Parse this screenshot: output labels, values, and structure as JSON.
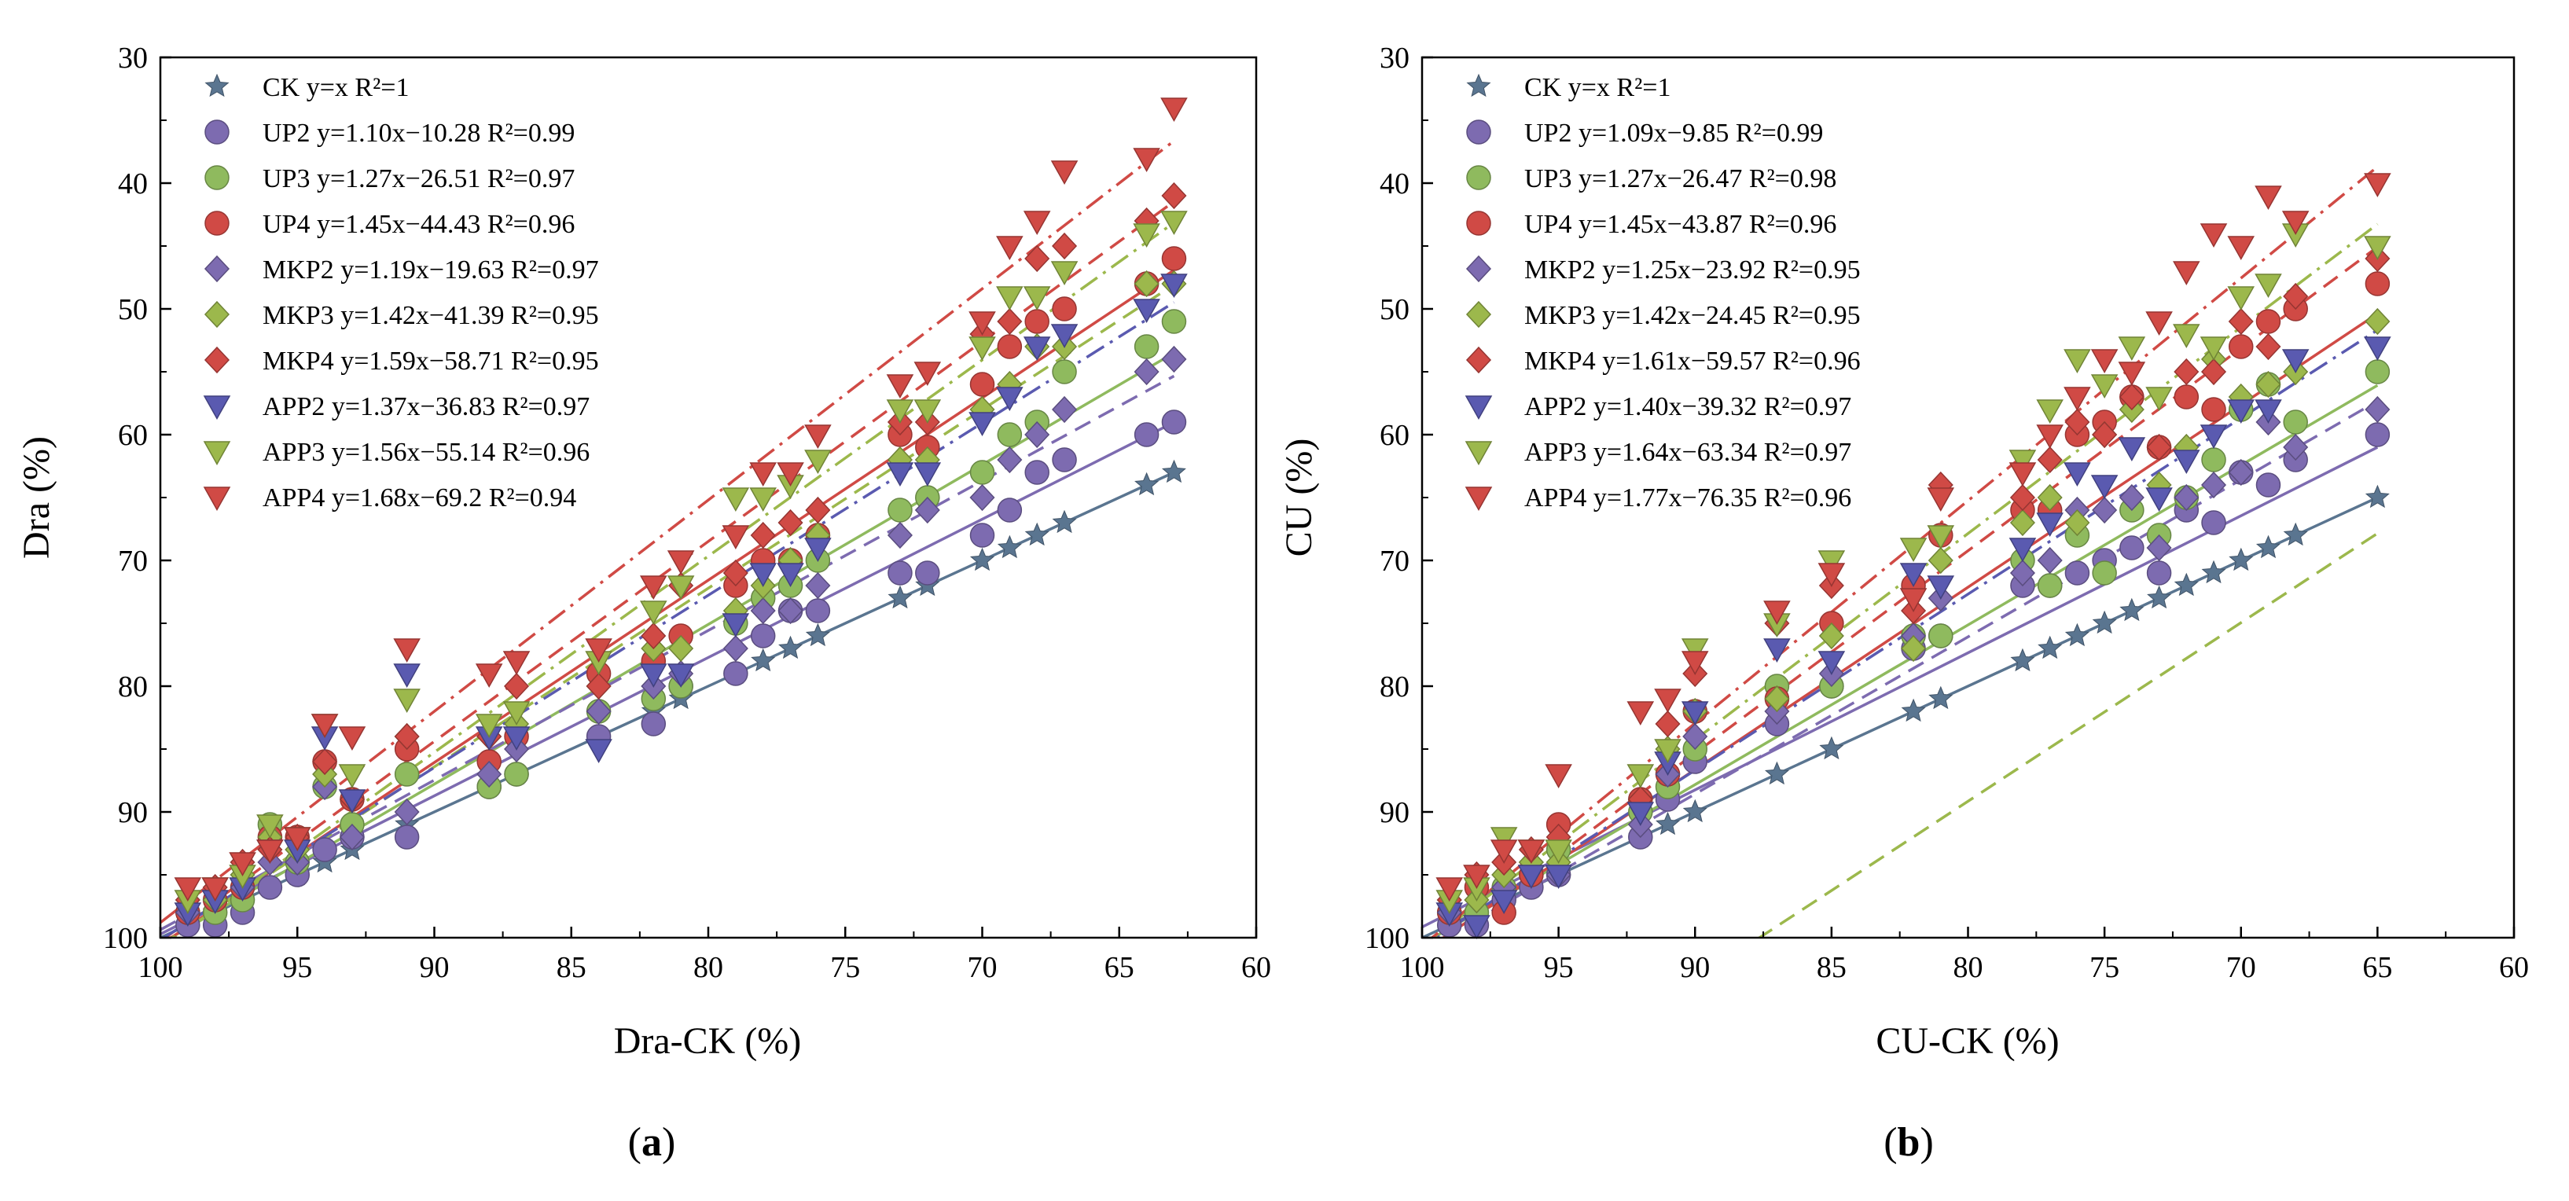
{
  "chart_data": [
    {
      "type": "scatter",
      "panel_label": "a",
      "xlabel": "Dra-CK (%)",
      "ylabel": "Dra (%)",
      "xlim": [
        100,
        60
      ],
      "ylim": [
        100,
        30
      ],
      "x_ticks": [
        100,
        95,
        90,
        85,
        80,
        75,
        70,
        65,
        60
      ],
      "y_ticks": [
        30,
        40,
        50,
        60,
        70,
        80,
        90,
        100
      ],
      "legend_position": "top-left",
      "x": [
        99,
        98,
        97,
        96,
        95,
        94,
        93,
        91,
        88,
        87,
        84,
        82,
        81,
        79,
        78,
        77,
        76,
        73,
        72,
        70,
        69,
        68,
        67,
        64,
        63
      ],
      "series": [
        {
          "name": "CK",
          "label": "CK y=x R²=1",
          "slope": 1.0,
          "intercept": 0.0,
          "marker": "star",
          "line": "solid",
          "color": "#5a7590",
          "values": [
            99,
            98,
            97,
            96,
            95,
            94,
            93,
            91,
            88,
            87,
            84,
            82,
            81,
            79,
            78,
            77,
            76,
            73,
            72,
            70,
            69,
            68,
            67,
            64,
            63
          ]
        },
        {
          "name": "UP2",
          "label": "UP2 y=1.10x−10.28 R²=0.99",
          "slope": 1.1,
          "intercept": -10.28,
          "marker": "circle",
          "line": "solid",
          "color": "#7d6bb0",
          "values": [
            99,
            99,
            98,
            96,
            95,
            93,
            92,
            92,
            88,
            87,
            84,
            83,
            80,
            79,
            76,
            74,
            74,
            71,
            71,
            68,
            66,
            63,
            62,
            60,
            59
          ]
        },
        {
          "name": "UP3",
          "label": "UP3 y=1.27x−26.51 R²=0.97",
          "slope": 1.27,
          "intercept": -26.51,
          "marker": "circle",
          "line": "solid",
          "color": "#8fba5e",
          "values": [
            98,
            98,
            97,
            91,
            94,
            88,
            91,
            87,
            88,
            87,
            82,
            81,
            80,
            75,
            73,
            72,
            70,
            66,
            65,
            63,
            60,
            59,
            55,
            53,
            51
          ]
        },
        {
          "name": "UP4",
          "label": "UP4 y=1.45x−44.43 R²=0.96",
          "slope": 1.45,
          "intercept": -44.43,
          "marker": "circle",
          "line": "solid",
          "color": "#d04a45",
          "values": [
            98,
            97,
            96,
            92,
            92,
            86,
            89,
            85,
            86,
            84,
            79,
            78,
            76,
            72,
            70,
            70,
            68,
            60,
            61,
            56,
            53,
            51,
            50,
            48,
            46
          ]
        },
        {
          "name": "MKP2",
          "label": "MKP2 y=1.19x−19.63 R²=0.97",
          "slope": 1.19,
          "intercept": -19.63,
          "marker": "diamond",
          "line": "dash",
          "color": "#7d6bb0",
          "values": [
            98,
            97,
            96,
            94,
            94,
            88,
            92,
            90,
            87,
            85,
            82,
            80,
            79,
            77,
            74,
            74,
            72,
            68,
            66,
            65,
            62,
            60,
            58,
            55,
            54
          ]
        },
        {
          "name": "MKP3",
          "label": "MKP3 y=1.42x−41.39 R²=0.95",
          "slope": 1.42,
          "intercept": -41.39,
          "marker": "diamond",
          "line": "dash",
          "color": "#9cb84c",
          "values": [
            97,
            97,
            95,
            92,
            93,
            87,
            89,
            84,
            84,
            83,
            80,
            77,
            77,
            74,
            72,
            70,
            68,
            62,
            62,
            58,
            56,
            53,
            53,
            48,
            48
          ]
        },
        {
          "name": "MKP4",
          "label": "MKP4 y=1.59x−58.71 R²=0.95",
          "slope": 1.59,
          "intercept": -58.71,
          "marker": "diamond",
          "line": "dash",
          "color": "#d04a45",
          "values": [
            97,
            96,
            94,
            93,
            92,
            86,
            89,
            84,
            84,
            80,
            80,
            76,
            72,
            71,
            68,
            67,
            66,
            59,
            59,
            52,
            51,
            46,
            45,
            43,
            41
          ]
        },
        {
          "name": "APP2",
          "label": "APP2 y=1.37x−36.83 R²=0.97",
          "slope": 1.37,
          "intercept": -36.83,
          "marker": "triangle-down",
          "line": "dashdot",
          "color": "#5a5ab0",
          "values": [
            98,
            97,
            96,
            93,
            93,
            84,
            89,
            79,
            84,
            84,
            85,
            79,
            79,
            75,
            71,
            71,
            69,
            63,
            63,
            59,
            57,
            53,
            52,
            50,
            48
          ]
        },
        {
          "name": "APP3",
          "label": "APP3 y=1.56x−55.14 R²=0.96",
          "slope": 1.56,
          "intercept": -55.14,
          "marker": "triangle-down",
          "line": "dashdot",
          "color": "#9cb84c",
          "values": [
            97,
            96,
            95,
            91,
            92,
            83,
            87,
            81,
            83,
            82,
            78,
            74,
            72,
            65,
            65,
            64,
            62,
            58,
            58,
            53,
            49,
            49,
            47,
            44,
            43
          ]
        },
        {
          "name": "APP4",
          "label": "APP4 y=1.68x−69.2 R²=0.94",
          "slope": 1.68,
          "intercept": -69.2,
          "marker": "triangle-down",
          "line": "dashdot",
          "color": "#d04a45",
          "values": [
            96,
            96,
            94,
            93,
            92,
            83,
            84,
            77,
            79,
            78,
            77,
            72,
            70,
            68,
            63,
            63,
            60,
            56,
            55,
            51,
            45,
            43,
            39,
            38,
            34
          ]
        }
      ]
    },
    {
      "type": "scatter",
      "panel_label": "b",
      "xlabel": "CU-CK (%)",
      "ylabel": "CU (%)",
      "xlim": [
        100,
        60
      ],
      "ylim": [
        100,
        30
      ],
      "x_ticks": [
        100,
        95,
        90,
        85,
        80,
        75,
        70,
        65,
        60
      ],
      "y_ticks": [
        30,
        40,
        50,
        60,
        70,
        80,
        90,
        100
      ],
      "legend_position": "top-left",
      "x": [
        99,
        98,
        97,
        96,
        95,
        92,
        91,
        90,
        87,
        85,
        82,
        81,
        78,
        77,
        76,
        75,
        74,
        73,
        72,
        71,
        70,
        69,
        68,
        65
      ],
      "series": [
        {
          "name": "CK",
          "label": "CK y=x R²=1",
          "slope": 1.0,
          "intercept": 0.0,
          "marker": "star",
          "line": "solid",
          "color": "#5a7590",
          "values": [
            99,
            98,
            97,
            96,
            95,
            92,
            91,
            90,
            87,
            85,
            82,
            81,
            78,
            77,
            76,
            75,
            74,
            73,
            72,
            71,
            70,
            69,
            68,
            65
          ]
        },
        {
          "name": "UP2",
          "label": "UP2 y=1.09x−9.85 R²=0.99",
          "slope": 1.09,
          "intercept": -9.85,
          "marker": "circle",
          "line": "solid",
          "color": "#7d6bb0",
          "values": [
            99,
            99,
            97,
            96,
            95,
            92,
            89,
            86,
            83,
            80,
            77,
            76,
            72,
            72,
            71,
            70,
            69,
            71,
            66,
            67,
            63,
            64,
            62,
            60
          ]
        },
        {
          "name": "UP3",
          "label": "UP3 y=1.27x−26.47 R²=0.98",
          "slope": 1.27,
          "intercept": -26.47,
          "marker": "circle",
          "line": "solid",
          "color": "#8fba5e",
          "values": [
            98,
            98,
            96,
            95,
            93,
            90,
            88,
            85,
            80,
            80,
            76,
            76,
            70,
            72,
            68,
            71,
            66,
            68,
            65,
            62,
            58,
            56,
            59,
            55
          ]
        },
        {
          "name": "UP4",
          "label": "UP4 y=1.45x−43.87 R²=0.96",
          "slope": 1.45,
          "intercept": -43.87,
          "marker": "circle",
          "line": "solid",
          "color": "#d04a45",
          "values": [
            98,
            96,
            98,
            95,
            91,
            89,
            87,
            82,
            81,
            75,
            72,
            68,
            66,
            66,
            60,
            59,
            57,
            61,
            57,
            58,
            53,
            51,
            50,
            48
          ]
        },
        {
          "name": "MKP2",
          "label": "MKP2 y=1.25x−23.92 R²=0.95",
          "slope": 1.25,
          "intercept": -23.92,
          "marker": "diamond",
          "line": "dash",
          "color": "#7d6bb0",
          "values": [
            98,
            97,
            96,
            94,
            95,
            91,
            87,
            84,
            82,
            79,
            76,
            73,
            71,
            70,
            66,
            66,
            65,
            69,
            65,
            64,
            63,
            59,
            61,
            58
          ]
        },
        {
          "name": "MKP3",
          "label": "MKP3 y=1.42x−24.45 R²=0.95",
          "slope": 1.42,
          "intercept": -24.45,
          "marker": "diamond",
          "line": "dash",
          "color": "#9cb84c",
          "values": [
            97,
            97,
            95,
            94,
            94,
            89,
            85,
            82,
            81,
            76,
            77,
            70,
            67,
            65,
            67,
            60,
            58,
            64,
            61,
            54,
            57,
            56,
            55,
            51
          ]
        },
        {
          "name": "MKP4",
          "label": "MKP4 y=1.61x−59.57 R²=0.96",
          "slope": 1.61,
          "intercept": -59.57,
          "marker": "diamond",
          "line": "dash",
          "color": "#d04a45",
          "values": [
            97,
            95,
            94,
            93,
            92,
            89,
            83,
            79,
            75,
            72,
            74,
            64,
            65,
            62,
            59,
            60,
            57,
            61,
            55,
            55,
            51,
            53,
            49,
            46
          ]
        },
        {
          "name": "APP2",
          "label": "APP2 y=1.40x−39.32 R²=0.97",
          "slope": 1.4,
          "intercept": -39.32,
          "marker": "triangle-down",
          "line": "dashdot",
          "color": "#5a5ab0",
          "values": [
            98,
            99,
            97,
            95,
            95,
            90,
            86,
            82,
            77,
            78,
            71,
            72,
            69,
            67,
            63,
            64,
            61,
            65,
            62,
            60,
            58,
            58,
            54,
            53
          ]
        },
        {
          "name": "APP3",
          "label": "APP3 y=1.64x−63.34 R²=0.97",
          "slope": 1.64,
          "intercept": -63.34,
          "marker": "triangle-down",
          "line": "dashdot",
          "color": "#9cb84c",
          "values": [
            97,
            96,
            92,
            93,
            93,
            87,
            85,
            77,
            75,
            70,
            69,
            68,
            62,
            58,
            54,
            56,
            53,
            57,
            52,
            53,
            49,
            48,
            44,
            45
          ]
        },
        {
          "name": "APP4",
          "label": "APP4 y=1.77x−76.35 R²=0.96",
          "slope": 1.77,
          "intercept": -76.35,
          "marker": "triangle-down",
          "line": "dashdot",
          "color": "#d04a45",
          "values": [
            96,
            95,
            93,
            93,
            87,
            82,
            81,
            78,
            74,
            71,
            73,
            65,
            63,
            60,
            57,
            54,
            55,
            51,
            47,
            44,
            45,
            41,
            43,
            40
          ]
        }
      ]
    }
  ]
}
